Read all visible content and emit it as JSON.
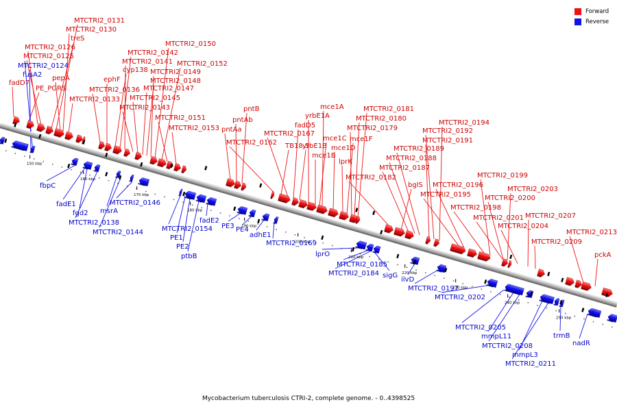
{
  "legend": {
    "forward_label": "Forward",
    "reverse_label": "Reverse",
    "forward_color": "#ee1111",
    "reverse_color": "#1111ee"
  },
  "caption": "Mycobacterium tuberculosis CTRI-2, complete genome. - 0..4398525",
  "ticks": [
    "150 kbp",
    "160 kbp",
    "170 kbp",
    "180 kbp",
    "190 kbp",
    "200 kbp",
    "210 kbp",
    "220 kbp",
    "230 kbp",
    "240 kbp",
    "250 kbp"
  ],
  "forward_labels": [
    "fadD7",
    "PE_PGRS",
    "MTCTRI2_0126",
    "MTCTRI2_0125",
    "treS",
    "MTCTRI2_0131",
    "MTCTRI2_0130",
    "pepA",
    "MTCTRI2_0133",
    "MTCTRI2_0136",
    "ephF",
    "cyp138",
    "MTCTRI2_0142",
    "MTCTRI2_0141",
    "MTCTRI2_0143",
    "MTCTRI2_0145",
    "MTCTRI2_0147",
    "MTCTRI2_0148",
    "MTCTRI2_0149",
    "MTCTRI2_0150",
    "MTCTRI2_0152",
    "MTCTRI2_0151",
    "MTCTRI2_0153",
    "pntAa",
    "pntAb",
    "pntB",
    "MTCTRI2_0162",
    "TB18.5",
    "MTCTRI2_0167",
    "fadD5",
    "yrbE1B",
    "yrbE1A",
    "mce1B",
    "mce1C",
    "mce1A",
    "mce1D",
    "lprK",
    "mce1F",
    "MTCTRI2_0179",
    "MTCTRI2_0180",
    "MTCTRI2_0181",
    "MTCTRI2_0182",
    "bglS",
    "MTCTRI2_0187",
    "MTCTRI2_0188",
    "MTCTRI2_0189",
    "MTCTRI2_0191",
    "MTCTRI2_0192",
    "MTCTRI2_0194",
    "MTCTRI2_0195",
    "MTCTRI2_0196",
    "MTCTRI2_0198",
    "MTCTRI2_0199",
    "MTCTRI2_0201",
    "MTCTRI2_0200",
    "MTCTRI2_0203",
    "MTCTRI2_0204",
    "MTCTRI2_0207",
    "MTCTRI2_0209",
    "MTCTRI2_0213",
    "pckA"
  ],
  "reverse_labels": [
    "MTCTRI2_0124",
    "fusA2",
    "fbpC",
    "fadE1",
    "fgd2",
    "MTCTRI2_0138",
    "msrA",
    "MTCTRI2_0144",
    "MTCTRI2_0146",
    "MTCTRI2_0154",
    "PE1",
    "PE2",
    "ptbB",
    "fadE2",
    "PE3",
    "PE4",
    "adhE1",
    "MTCTRI2_0169",
    "lprO",
    "MTCTRI2_0185",
    "MTCTRI2_0184",
    "sigG",
    "ilvD",
    "MTCTRI2_0197",
    "MTCTRI2_0202",
    "MTCTRI2_0205",
    "mmpL11",
    "MTCTRI2_0208",
    "mmpL3",
    "MTCTRI2_0211",
    "trmB",
    "nadR"
  ]
}
